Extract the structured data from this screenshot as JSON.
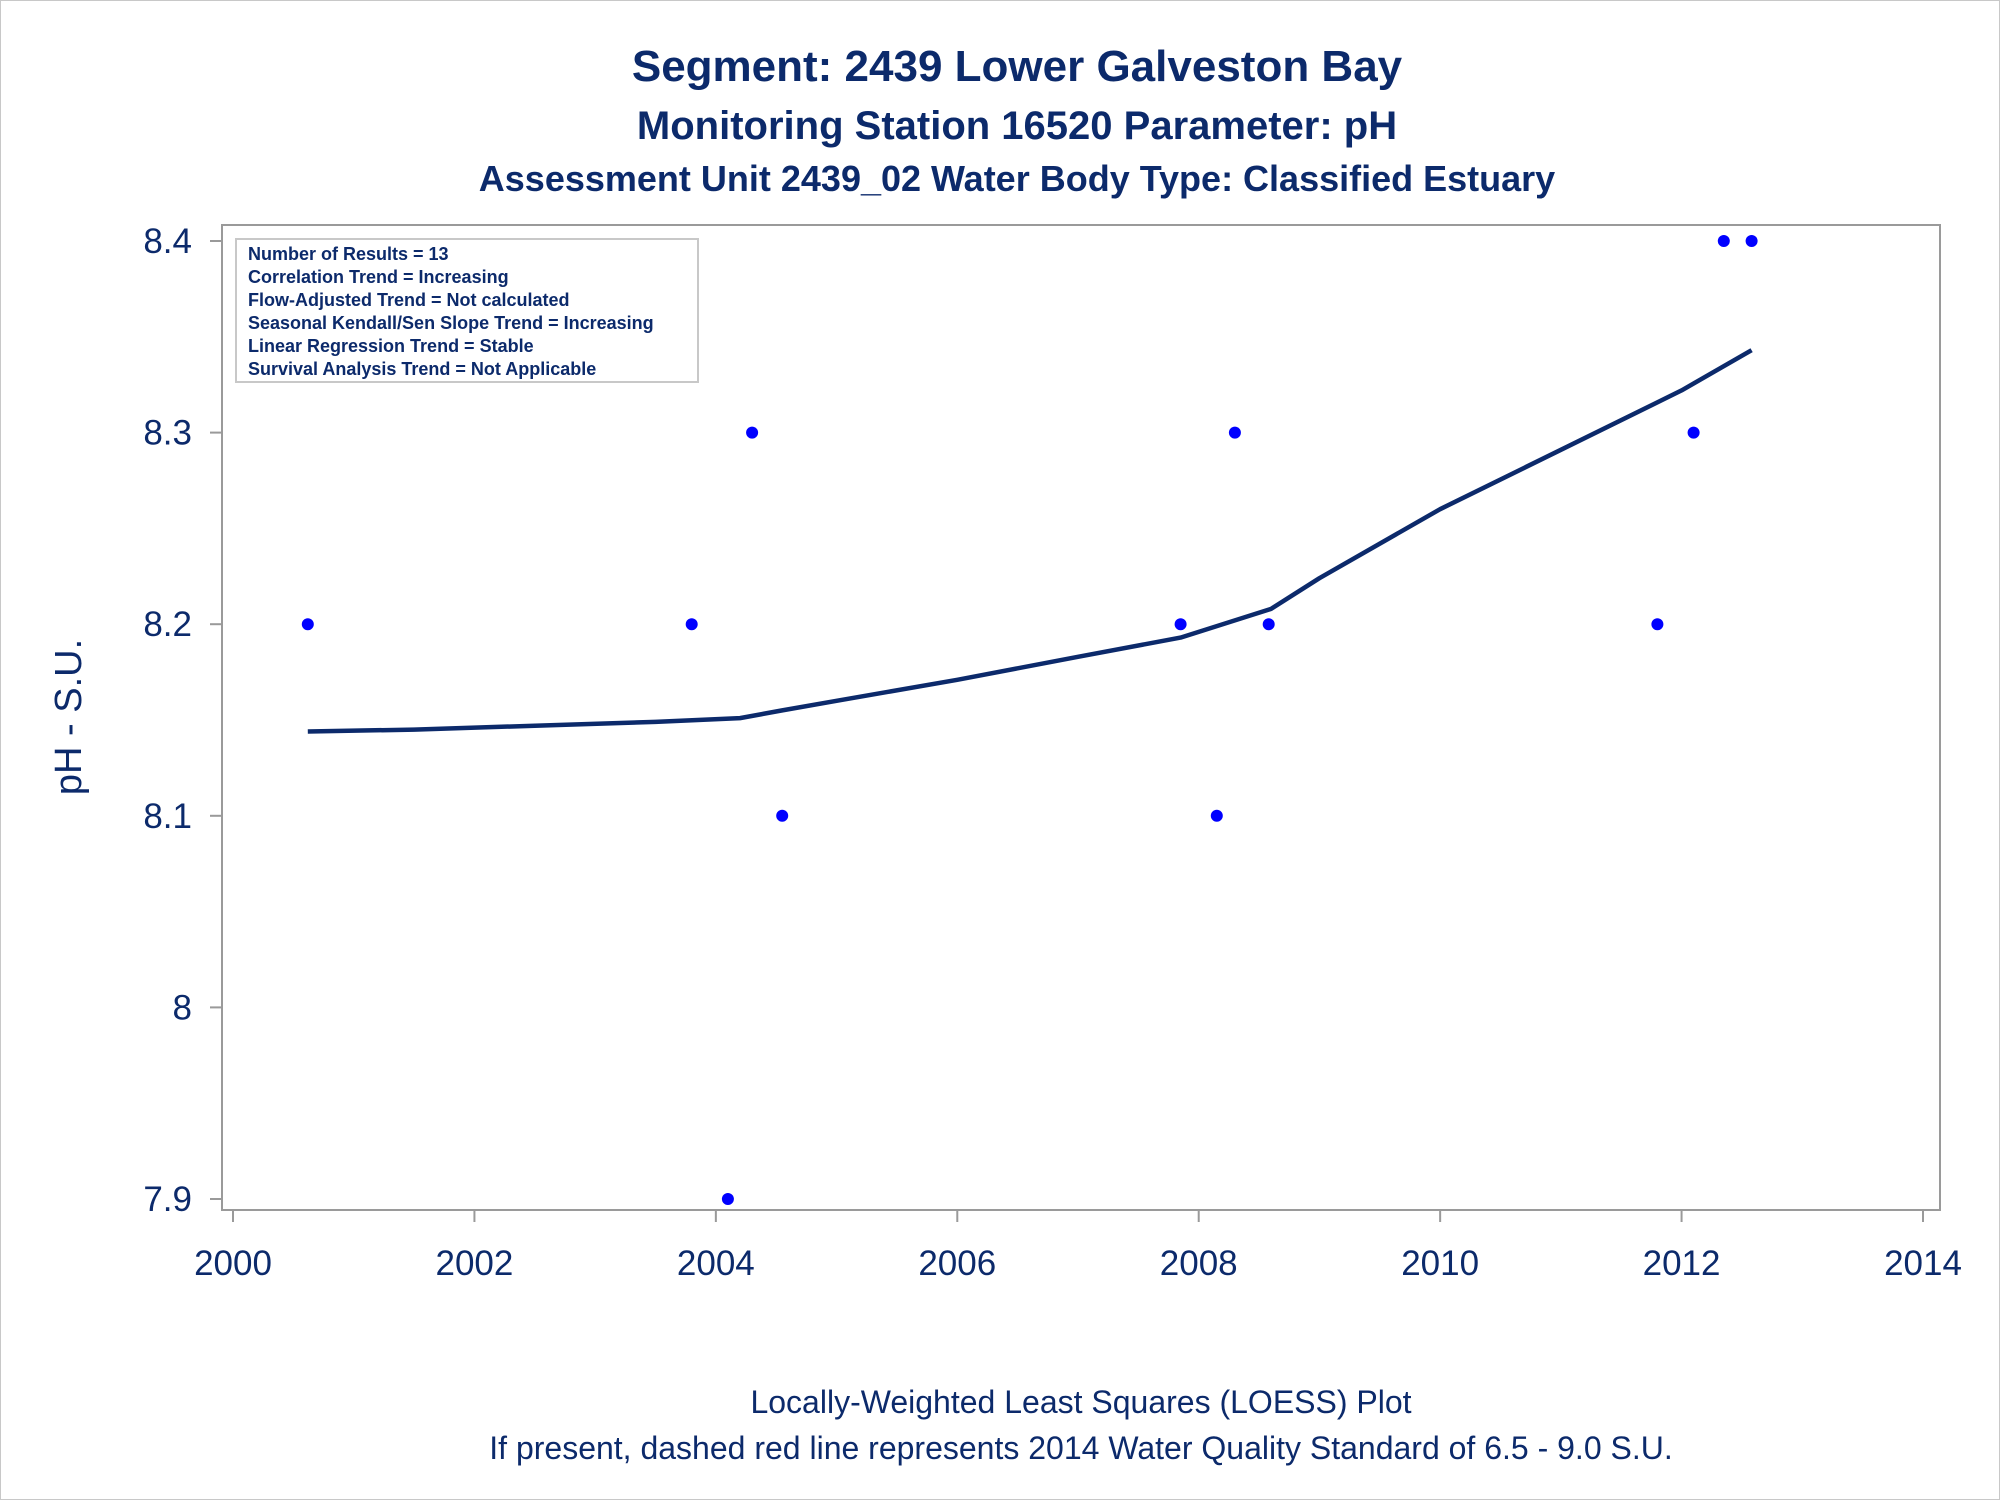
{
  "titles": {
    "line1": "Segment: 2439  Lower Galveston Bay",
    "line2": "Monitoring Station 16520 Parameter: pH",
    "line3": "Assessment Unit 2439_02   Water Body Type: Classified Estuary"
  },
  "inset": {
    "lines": [
      "Number of Results = 13",
      "Correlation Trend = Increasing",
      "Flow-Adjusted Trend = Not calculated",
      "Seasonal Kendall/Sen Slope Trend = Increasing",
      "Linear Regression Trend = Stable",
      "Survival Analysis Trend = Not Applicable"
    ]
  },
  "footer": {
    "line1": "Locally-Weighted Least Squares (LOESS) Plot",
    "line2": "If present, dashed red line represents 2014 Water Quality Standard of 6.5 - 9.0 S.U."
  },
  "colors": {
    "points": "#0000ff",
    "loess": "#0c2a6b",
    "text": "#0c2a6b",
    "axis": "#9a9a9a"
  },
  "chart_data": {
    "type": "scatter",
    "xlabel": "",
    "ylabel": "pH - S.U.",
    "xlim": [
      2000,
      2014
    ],
    "ylim": [
      7.9,
      8.4
    ],
    "xticks": [
      2000,
      2002,
      2004,
      2006,
      2008,
      2010,
      2012,
      2014
    ],
    "yticks": [
      7.9,
      8,
      8.1,
      8.2,
      8.3,
      8.4
    ],
    "ytick_labels": [
      "7.9",
      "8",
      "8.1",
      "8.2",
      "8.3",
      "8.4"
    ],
    "grid": false,
    "legend": "none",
    "points": {
      "x": [
        2000.62,
        2003.8,
        2004.1,
        2004.3,
        2004.55,
        2007.85,
        2008.15,
        2008.3,
        2008.58,
        2011.8,
        2012.1,
        2012.35,
        2012.58
      ],
      "y": [
        8.2,
        8.2,
        7.9,
        8.3,
        8.1,
        8.2,
        8.1,
        8.3,
        8.2,
        8.2,
        8.3,
        8.4,
        8.4
      ]
    },
    "loess": {
      "x": [
        2000.62,
        2001.5,
        2002.5,
        2003.5,
        2004.2,
        2004.55,
        2005,
        2006,
        2007,
        2007.85,
        2008.3,
        2008.6,
        2009,
        2010,
        2011,
        2012,
        2012.58
      ],
      "y": [
        8.144,
        8.145,
        8.147,
        8.149,
        8.151,
        8.155,
        8.16,
        8.171,
        8.183,
        8.193,
        8.202,
        8.208,
        8.224,
        8.26,
        8.291,
        8.322,
        8.343
      ]
    }
  }
}
